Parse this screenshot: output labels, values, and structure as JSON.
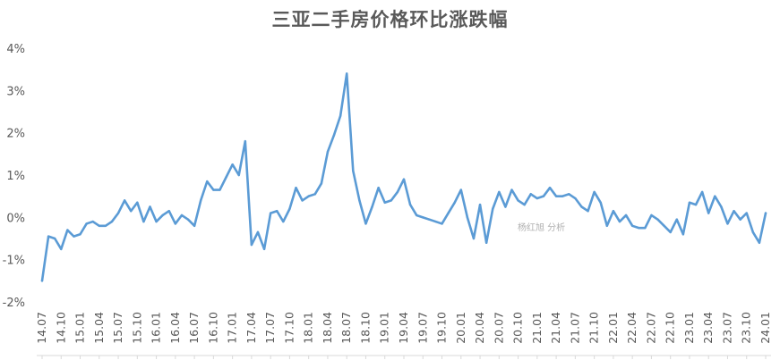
{
  "chart_data": {
    "type": "line",
    "title": "三亚二手房价格环比涨跌幅",
    "watermark": "杨红旭 分析",
    "ylim": [
      -2,
      4
    ],
    "y_ticks": [
      "4%",
      "3%",
      "2%",
      "1%",
      "0%",
      "-1%",
      "-2%"
    ],
    "y_tick_values": [
      4,
      3,
      2,
      1,
      0,
      -1,
      -2
    ],
    "x_ticks": [
      "14.07",
      "14.10",
      "15.01",
      "15.04",
      "15.07",
      "15.10",
      "16.01",
      "16.04",
      "16.07",
      "16.10",
      "17.01",
      "17.04",
      "17.07",
      "17.10",
      "18.01",
      "18.04",
      "18.07",
      "18.10",
      "19.01",
      "19.04",
      "19.07",
      "19.10",
      "20.01",
      "20.04",
      "20.07",
      "20.10",
      "21.01",
      "21.04",
      "21.07",
      "21.10",
      "22.01",
      "22.04",
      "22.07",
      "22.10",
      "23.01",
      "23.04",
      "23.07",
      "23.10",
      "24.01"
    ],
    "grid": false,
    "line_color": "#5B9BD5",
    "series": [
      {
        "values": [
          -1.5,
          -0.45,
          -0.5,
          -0.75,
          -0.3,
          -0.45,
          -0.4,
          -0.15,
          -0.1,
          -0.2,
          -0.2,
          -0.1,
          0.1,
          0.4,
          0.15,
          0.35,
          -0.1,
          0.25,
          -0.1,
          0.05,
          0.15,
          -0.15,
          0.05,
          -0.05,
          -0.2,
          0.4,
          0.85,
          0.65,
          0.65,
          0.95,
          1.25,
          1.0,
          1.8,
          -0.65,
          -0.35,
          -0.75,
          0.1,
          0.15,
          -0.1,
          0.2,
          0.7,
          0.4,
          0.5,
          0.55,
          0.8,
          1.55,
          1.95,
          2.4,
          3.4,
          1.1,
          0.4,
          -0.15,
          0.25,
          0.7,
          0.35,
          0.4,
          0.6,
          0.9,
          0.3,
          0.05,
          0.0,
          -0.05,
          -0.1,
          -0.15,
          0.1,
          0.35,
          0.65,
          0.0,
          -0.5,
          0.3,
          -0.6,
          0.2,
          0.6,
          0.25,
          0.65,
          0.4,
          0.3,
          0.55,
          0.45,
          0.5,
          0.7,
          0.5,
          0.5,
          0.55,
          0.45,
          0.25,
          0.15,
          0.6,
          0.35,
          -0.2,
          0.15,
          -0.1,
          0.05,
          -0.2,
          -0.25,
          -0.25,
          0.05,
          -0.05,
          -0.2,
          -0.35,
          -0.05,
          -0.4,
          0.35,
          0.3,
          0.6,
          0.1,
          0.5,
          0.25,
          -0.15,
          0.15,
          -0.05,
          0.1,
          -0.35,
          -0.6,
          0.1
        ]
      }
    ]
  }
}
